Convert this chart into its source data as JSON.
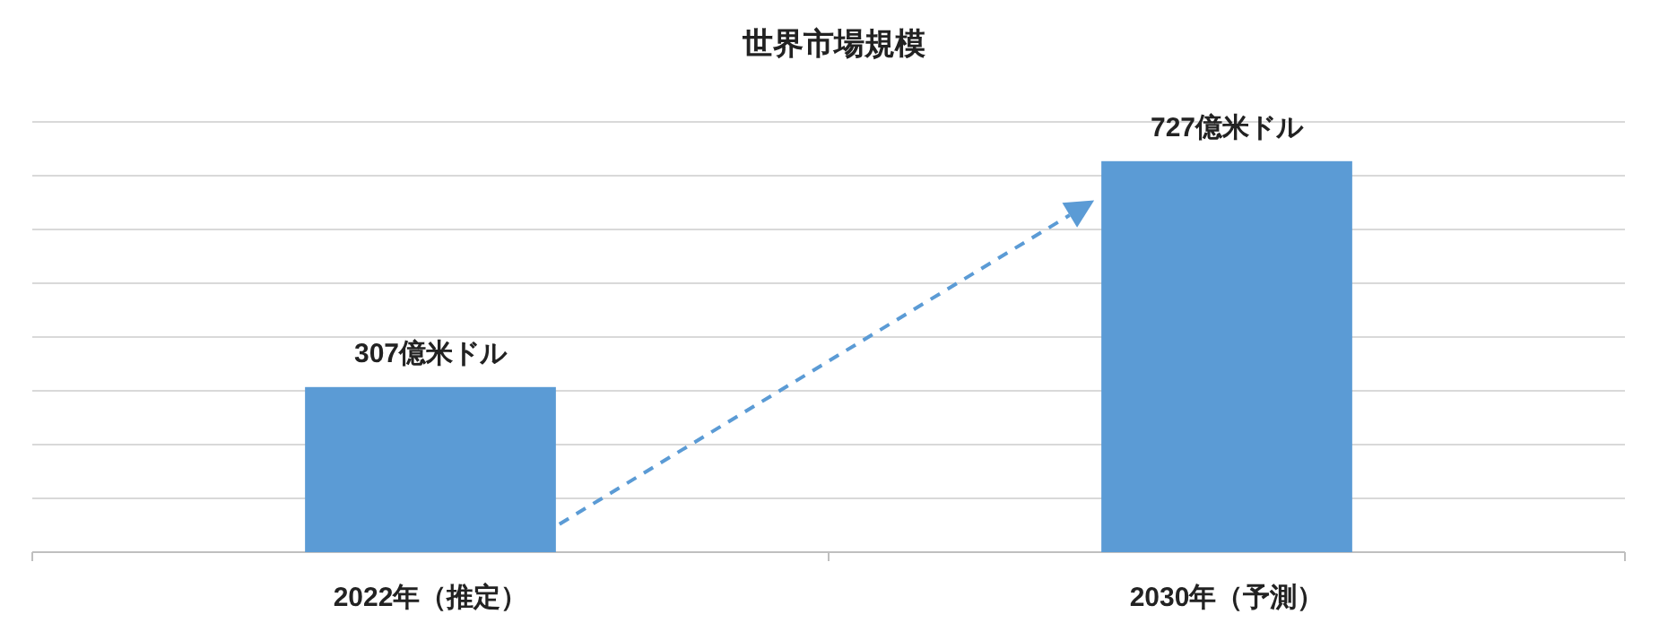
{
  "chart_data": {
    "type": "bar",
    "title": "世界市場規模",
    "categories": [
      "2022年（推定）",
      "2030年（予測）"
    ],
    "series": [
      {
        "color": "#5b9bd5",
        "values": [
          307,
          727
        ],
        "value_labels": [
          "307億米ドル",
          "727億米ドル"
        ]
      }
    ],
    "ylim": [
      0,
      800
    ],
    "yticks": [
      {
        "value": 0,
        "label": null
      },
      {
        "value": 100,
        "label": null
      },
      {
        "value": 200,
        "label": null
      },
      {
        "value": 300,
        "label": null
      },
      {
        "value": 400,
        "label": null
      },
      {
        "value": 500,
        "label": null
      },
      {
        "value": 600,
        "label": null
      },
      {
        "value": 700,
        "label": null
      },
      {
        "value": 800,
        "label": null
      }
    ],
    "grid": "y",
    "tick_labels": "x"
  }
}
